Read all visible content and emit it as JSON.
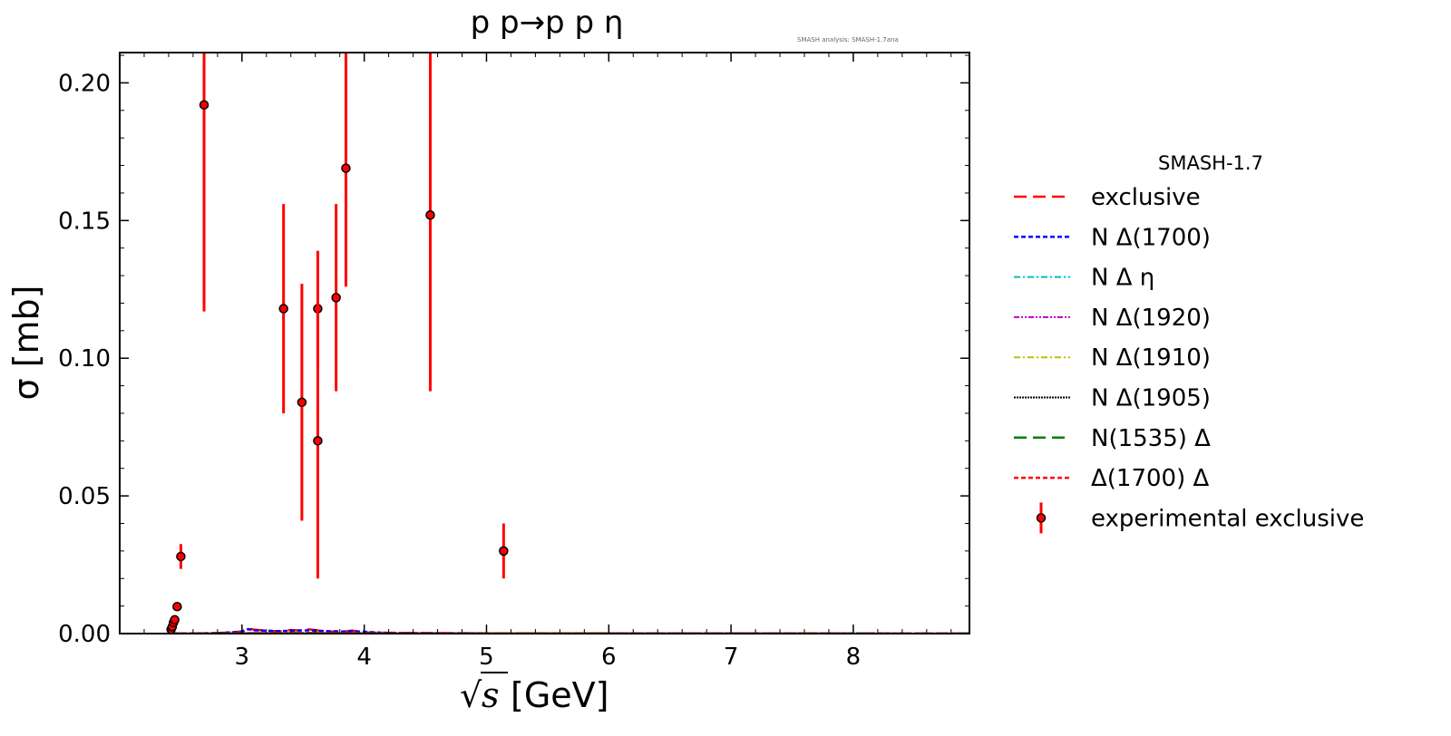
{
  "chart_data": {
    "type": "scatter",
    "title": "p p→p p η",
    "watermark": "SMASH analysis: SMASH-1.7ana",
    "xlabel": "[GeV]",
    "xlabel_radicand": "s",
    "ylabel": "σ [mb]",
    "xlim": [
      2.0,
      8.95
    ],
    "ylim": [
      0.0,
      0.211
    ],
    "xticks": [
      3,
      4,
      5,
      6,
      7,
      8
    ],
    "xtick_labels": [
      "3",
      "4",
      "5",
      "6",
      "7",
      "8"
    ],
    "yticks": [
      0.0,
      0.05,
      0.1,
      0.15,
      0.2
    ],
    "ytick_labels": [
      "0.00",
      "0.05",
      "0.10",
      "0.15",
      "0.20"
    ],
    "grid": false,
    "legend_title": "SMASH-1.7",
    "legend_position": "outside-right",
    "series": [
      {
        "name": "exclusive",
        "color": "#ff0000",
        "dash": "14,7",
        "width": 2.5,
        "x": [
          2.45,
          2.7,
          2.9,
          3.0,
          3.05,
          3.1,
          3.2,
          3.3,
          3.4,
          3.5,
          3.55,
          3.6,
          3.7,
          3.8,
          3.85,
          3.9,
          4.0,
          4.2,
          4.5,
          5.0,
          6.0,
          7.0,
          8.0,
          8.95
        ],
        "y": [
          0,
          0,
          0.0004,
          0.0008,
          0.0019,
          0.0014,
          0.0011,
          0.0008,
          0.0013,
          0.0011,
          0.0015,
          0.0013,
          0.0006,
          0.001,
          0.0008,
          0.0011,
          0.0004,
          0.0003,
          0.0002,
          0.0001,
          0.0001,
          0,
          0,
          0
        ]
      },
      {
        "name": "N Δ(1700)",
        "color": "#0000ff",
        "dash": "5,3",
        "width": 2.5,
        "x": [
          2.45,
          2.8,
          3.0,
          3.05,
          3.1,
          3.3,
          3.5,
          3.6,
          3.8,
          3.9,
          4.2,
          5.0,
          6.0,
          8.95
        ],
        "y": [
          0,
          0.0002,
          0.0007,
          0.0016,
          0.0012,
          0.0009,
          0.0012,
          0.0011,
          0.0007,
          0.0009,
          0.0002,
          0.0001,
          0.0001,
          0
        ]
      },
      {
        "name": "N Δ η",
        "color": "#00bfbf",
        "dash": "7,3,2,3",
        "width": 2,
        "x": [
          2.45,
          3.0,
          3.5,
          4.0,
          8.95
        ],
        "y": [
          0,
          0.0001,
          0.0001,
          0.0001,
          0
        ]
      },
      {
        "name": "N Δ(1920)",
        "color": "#bf00bf",
        "dash": "6,2,2,2,2,2",
        "width": 2,
        "x": [
          2.45,
          3.0,
          3.5,
          4.0,
          8.95
        ],
        "y": [
          0,
          0.0002,
          0.0002,
          0.0001,
          0
        ]
      },
      {
        "name": "N Δ(1910)",
        "color": "#bfbf00",
        "dash": "7,3,2,3",
        "width": 2,
        "x": [
          2.45,
          3.0,
          3.5,
          4.0,
          8.95
        ],
        "y": [
          0,
          0.0001,
          0.0001,
          0.0001,
          0
        ]
      },
      {
        "name": "N Δ(1905)",
        "color": "#000000",
        "dash": "2,1",
        "width": 2,
        "x": [
          2.45,
          3.0,
          3.5,
          4.0,
          8.95
        ],
        "y": [
          0,
          0.0001,
          0.0001,
          0.0001,
          0
        ]
      },
      {
        "name": "N(1535) Δ",
        "color": "#008000",
        "dash": "14,7",
        "width": 2.5,
        "x": [
          2.45,
          3.0,
          3.5,
          4.0,
          8.95
        ],
        "y": [
          0,
          0.0001,
          0.0002,
          0.0001,
          0
        ]
      },
      {
        "name": "Δ(1700) Δ",
        "color": "#ff0000",
        "dash": "5,3",
        "width": 2.5,
        "x": [
          2.45,
          3.0,
          3.5,
          4.0,
          8.95
        ],
        "y": [
          0,
          0.0001,
          0.0002,
          0.0001,
          0
        ]
      }
    ],
    "experimental": {
      "name": "experimental exclusive",
      "color": "#ff0000",
      "marker_color": "#ff0000",
      "marker_edge": "#000000",
      "points": [
        {
          "x": 2.42,
          "y": 0.0015,
          "err": 0.0003
        },
        {
          "x": 2.43,
          "y": 0.0025,
          "err": 0.0004
        },
        {
          "x": 2.44,
          "y": 0.004,
          "err": 0.0005
        },
        {
          "x": 2.45,
          "y": 0.005,
          "err": 0.0006
        },
        {
          "x": 2.47,
          "y": 0.0098,
          "err": 0.001
        },
        {
          "x": 2.5,
          "y": 0.028,
          "err": 0.0045
        },
        {
          "x": 2.69,
          "y": 0.192,
          "err": 0.075
        },
        {
          "x": 3.34,
          "y": 0.118,
          "err": 0.038
        },
        {
          "x": 3.49,
          "y": 0.084,
          "err": 0.043
        },
        {
          "x": 3.62,
          "y": 0.118,
          "err": 0.021
        },
        {
          "x": 3.62,
          "y": 0.07,
          "err": 0.05
        },
        {
          "x": 3.77,
          "y": 0.122,
          "err": 0.034
        },
        {
          "x": 3.85,
          "y": 0.169,
          "err": 0.043
        },
        {
          "x": 4.54,
          "y": 0.152,
          "err": 0.064
        },
        {
          "x": 5.14,
          "y": 0.03,
          "err": 0.01
        }
      ]
    }
  }
}
